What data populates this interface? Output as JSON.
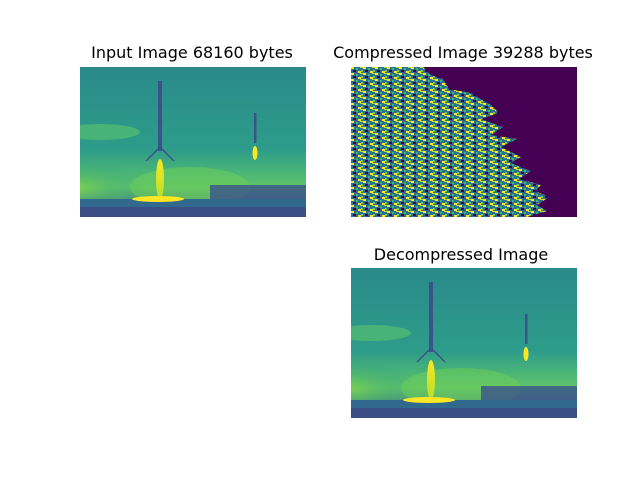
{
  "figure": {
    "panels": [
      {
        "title": "Input Image 68160 bytes",
        "content": "rocket-landing-photo"
      },
      {
        "title": "Compressed Image 39288 bytes",
        "content": "compressed-noise-pattern"
      },
      {
        "title": "Decompressed Image",
        "content": "rocket-landing-photo"
      }
    ]
  },
  "colors": {
    "viridis_dark": "#440154",
    "viridis_teal": "#21918c",
    "viridis_green": "#35b779",
    "viridis_yellow": "#fde725",
    "viridis_blue": "#3b528b"
  }
}
